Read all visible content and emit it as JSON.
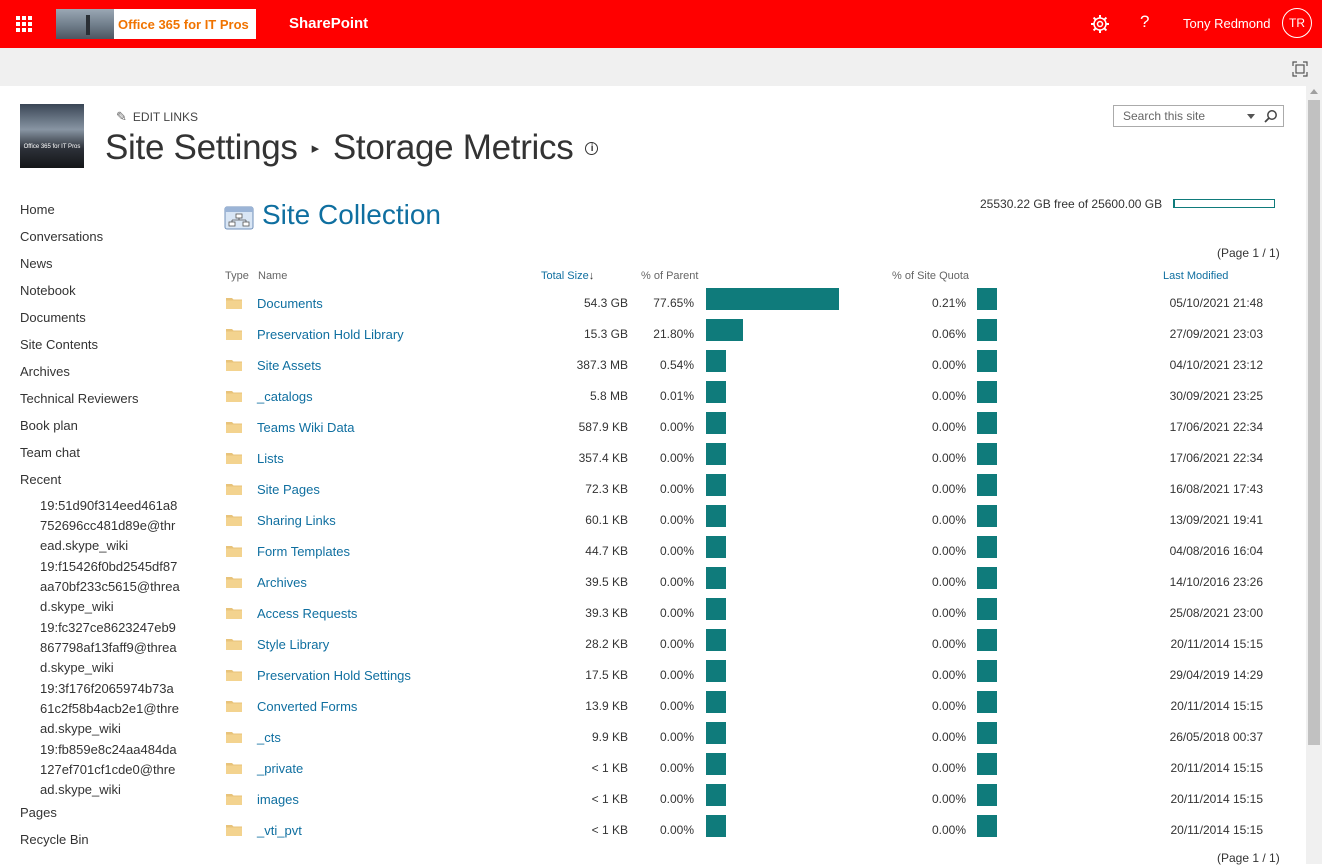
{
  "suite": {
    "brand_text": "Office 365 for IT Pros",
    "app_name": "SharePoint",
    "user_name": "Tony Redmond",
    "user_initials": "TR",
    "accent": "#ff0000"
  },
  "header": {
    "edit_links": "EDIT LINKS",
    "breadcrumb_parent": "Site Settings",
    "breadcrumb_current": "Storage Metrics",
    "search_placeholder": "Search this site",
    "logo_text": "Office 365 for IT Pros"
  },
  "leftnav": {
    "items": [
      "Home",
      "Conversations",
      "News",
      "Notebook",
      "Documents",
      "Site Contents",
      "Archives",
      "Technical Reviewers",
      "Book plan",
      "Team chat",
      "Recent"
    ],
    "recent": [
      "19:51d90f314eed461a8752696cc481d89e@thread.skype_wiki",
      "19:f15426f0bd2545df87aa70bf233c5615@thread.skype_wiki",
      "19:fc327ce8623247eb9867798af13faff9@thread.skype_wiki",
      "19:3f176f2065974b73a61c2f58b4acb2e1@thread.skype_wiki",
      "19:fb859e8c24aa484da127ef701cf1cde0@thread.skype_wiki"
    ],
    "bottom": [
      "Pages",
      "Recycle Bin"
    ]
  },
  "main": {
    "section_title": "Site Collection",
    "quota_text": "25530.22 GB free of 25600.00 GB",
    "quota_used_fraction": 0.0027,
    "pager": "(Page 1 / 1)",
    "columns": {
      "type": "Type",
      "name": "Name",
      "total_size": "Total Size",
      "sort_glyph": "↓",
      "pct_parent": "% of Parent",
      "pct_quota": "% of Site Quota",
      "last_modified": "Last Modified"
    },
    "rows": [
      {
        "name": "Documents",
        "size": "54.3 GB",
        "pct_parent": "77.65%",
        "pct_quota": "0.21%",
        "modified": "05/10/2021 21:48",
        "parent_value": 77.65,
        "quota_value": 0.21
      },
      {
        "name": "Preservation Hold Library",
        "size": "15.3 GB",
        "pct_parent": "21.80%",
        "pct_quota": "0.06%",
        "modified": "27/09/2021 23:03",
        "parent_value": 21.8,
        "quota_value": 0.06
      },
      {
        "name": "Site Assets",
        "size": "387.3 MB",
        "pct_parent": "0.54%",
        "pct_quota": "0.00%",
        "modified": "04/10/2021 23:12",
        "parent_value": 0.54,
        "quota_value": 0
      },
      {
        "name": "_catalogs",
        "size": "5.8 MB",
        "pct_parent": "0.01%",
        "pct_quota": "0.00%",
        "modified": "30/09/2021 23:25",
        "parent_value": 0.01,
        "quota_value": 0
      },
      {
        "name": "Teams Wiki Data",
        "size": "587.9 KB",
        "pct_parent": "0.00%",
        "pct_quota": "0.00%",
        "modified": "17/06/2021 22:34",
        "parent_value": 0,
        "quota_value": 0
      },
      {
        "name": "Lists",
        "size": "357.4 KB",
        "pct_parent": "0.00%",
        "pct_quota": "0.00%",
        "modified": "17/06/2021 22:34",
        "parent_value": 0,
        "quota_value": 0
      },
      {
        "name": "Site Pages",
        "size": "72.3 KB",
        "pct_parent": "0.00%",
        "pct_quota": "0.00%",
        "modified": "16/08/2021 17:43",
        "parent_value": 0,
        "quota_value": 0
      },
      {
        "name": "Sharing Links",
        "size": "60.1 KB",
        "pct_parent": "0.00%",
        "pct_quota": "0.00%",
        "modified": "13/09/2021 19:41",
        "parent_value": 0,
        "quota_value": 0
      },
      {
        "name": "Form Templates",
        "size": "44.7 KB",
        "pct_parent": "0.00%",
        "pct_quota": "0.00%",
        "modified": "04/08/2016 16:04",
        "parent_value": 0,
        "quota_value": 0
      },
      {
        "name": "Archives",
        "size": "39.5 KB",
        "pct_parent": "0.00%",
        "pct_quota": "0.00%",
        "modified": "14/10/2016 23:26",
        "parent_value": 0,
        "quota_value": 0
      },
      {
        "name": "Access Requests",
        "size": "39.3 KB",
        "pct_parent": "0.00%",
        "pct_quota": "0.00%",
        "modified": "25/08/2021 23:00",
        "parent_value": 0,
        "quota_value": 0
      },
      {
        "name": "Style Library",
        "size": "28.2 KB",
        "pct_parent": "0.00%",
        "pct_quota": "0.00%",
        "modified": "20/11/2014 15:15",
        "parent_value": 0,
        "quota_value": 0
      },
      {
        "name": "Preservation Hold Settings",
        "size": "17.5 KB",
        "pct_parent": "0.00%",
        "pct_quota": "0.00%",
        "modified": "29/04/2019 14:29",
        "parent_value": 0,
        "quota_value": 0
      },
      {
        "name": "Converted Forms",
        "size": "13.9 KB",
        "pct_parent": "0.00%",
        "pct_quota": "0.00%",
        "modified": "20/11/2014 15:15",
        "parent_value": 0,
        "quota_value": 0
      },
      {
        "name": "_cts",
        "size": "9.9 KB",
        "pct_parent": "0.00%",
        "pct_quota": "0.00%",
        "modified": "26/05/2018 00:37",
        "parent_value": 0,
        "quota_value": 0
      },
      {
        "name": "_private",
        "size": "< 1 KB",
        "pct_parent": "0.00%",
        "pct_quota": "0.00%",
        "modified": "20/11/2014 15:15",
        "parent_value": 0,
        "quota_value": 0
      },
      {
        "name": "images",
        "size": "< 1 KB",
        "pct_parent": "0.00%",
        "pct_quota": "0.00%",
        "modified": "20/11/2014 15:15",
        "parent_value": 0,
        "quota_value": 0
      },
      {
        "name": "_vti_pvt",
        "size": "< 1 KB",
        "pct_parent": "0.00%",
        "pct_quota": "0.00%",
        "modified": "20/11/2014 15:15",
        "parent_value": 0,
        "quota_value": 0
      }
    ],
    "bar_color": "#0f7b7b"
  }
}
